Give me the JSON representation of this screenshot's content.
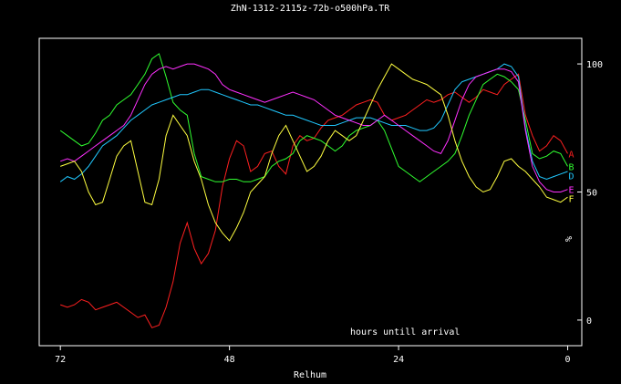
{
  "chart_data": {
    "type": "line",
    "title": "ZhN-1312-2115z-72b-o500hPa.TR",
    "xlabel": "Relhum",
    "ylabel": "%",
    "annotation": "hours untill arrival",
    "x_reversed": true,
    "xlim": [
      75,
      -2
    ],
    "ylim": [
      -10,
      110
    ],
    "x_ticks": [
      72,
      48,
      24,
      0
    ],
    "y_ticks": [
      0,
      50,
      100
    ],
    "grid": false,
    "series": [
      {
        "name": "A",
        "color": "#ff2020",
        "x": [
          72,
          71,
          70,
          69,
          68,
          67,
          66,
          65,
          64,
          63,
          62,
          61,
          60,
          59,
          58,
          57,
          56,
          55,
          54,
          53,
          52,
          51,
          50,
          49,
          48,
          47,
          46,
          45,
          44,
          43,
          42,
          41,
          40,
          39,
          38,
          37,
          36,
          35,
          34,
          33,
          32,
          31,
          30,
          29,
          28,
          27,
          26,
          25,
          24,
          23,
          22,
          21,
          20,
          19,
          18,
          17,
          16,
          15,
          14,
          13,
          12,
          11,
          10,
          9,
          8,
          7,
          6,
          5,
          4,
          3,
          2,
          1,
          0
        ],
        "values": [
          6,
          5,
          6,
          8,
          7,
          4,
          5,
          6,
          7,
          5,
          3,
          1,
          2,
          -3,
          -2,
          5,
          15,
          30,
          38,
          28,
          22,
          26,
          35,
          52,
          63,
          70,
          68,
          58,
          60,
          65,
          66,
          60,
          57,
          68,
          72,
          70,
          71,
          75,
          78,
          79,
          80,
          82,
          84,
          85,
          86,
          85,
          80,
          78,
          79,
          80,
          82,
          84,
          86,
          85,
          86,
          88,
          89,
          87,
          85,
          87,
          90,
          89,
          88,
          92,
          94,
          96,
          80,
          72,
          66,
          68,
          72,
          70,
          65
        ]
      },
      {
        "name": "B",
        "color": "#30ff30",
        "x": [
          72,
          71,
          70,
          69,
          68,
          67,
          66,
          65,
          64,
          63,
          62,
          61,
          60,
          59,
          58,
          57,
          56,
          55,
          54,
          53,
          52,
          51,
          50,
          49,
          48,
          47,
          46,
          45,
          44,
          43,
          42,
          41,
          40,
          39,
          38,
          37,
          36,
          35,
          34,
          33,
          32,
          31,
          30,
          29,
          28,
          27,
          26,
          25,
          24,
          23,
          22,
          21,
          20,
          19,
          18,
          17,
          16,
          15,
          14,
          13,
          12,
          11,
          10,
          9,
          8,
          7,
          6,
          5,
          4,
          3,
          2,
          1,
          0
        ],
        "values": [
          74,
          72,
          70,
          68,
          69,
          73,
          78,
          80,
          84,
          86,
          88,
          92,
          96,
          102,
          104,
          95,
          85,
          82,
          80,
          65,
          56,
          55,
          54,
          54,
          55,
          55,
          54,
          54,
          55,
          56,
          60,
          62,
          63,
          65,
          70,
          72,
          71,
          70,
          68,
          66,
          68,
          72,
          74,
          75,
          76,
          78,
          74,
          67,
          60,
          58,
          56,
          54,
          56,
          58,
          60,
          62,
          65,
          72,
          80,
          86,
          92,
          94,
          96,
          95,
          93,
          90,
          78,
          65,
          63,
          64,
          66,
          65,
          60
        ]
      },
      {
        "name": "D",
        "color": "#20c8ff",
        "x": [
          72,
          71,
          70,
          69,
          68,
          67,
          66,
          65,
          64,
          63,
          62,
          61,
          60,
          59,
          58,
          57,
          56,
          55,
          54,
          53,
          52,
          51,
          50,
          49,
          48,
          47,
          46,
          45,
          44,
          43,
          42,
          41,
          40,
          39,
          38,
          37,
          36,
          35,
          34,
          33,
          32,
          31,
          30,
          29,
          28,
          27,
          26,
          25,
          24,
          23,
          22,
          21,
          20,
          19,
          18,
          17,
          16,
          15,
          14,
          13,
          12,
          11,
          10,
          9,
          8,
          7,
          6,
          5,
          4,
          3,
          2,
          1,
          0
        ],
        "values": [
          54,
          56,
          55,
          57,
          60,
          64,
          68,
          70,
          72,
          75,
          78,
          80,
          82,
          84,
          85,
          86,
          87,
          88,
          88,
          89,
          90,
          90,
          89,
          88,
          87,
          86,
          85,
          84,
          84,
          83,
          82,
          81,
          80,
          80,
          79,
          78,
          77,
          76,
          76,
          76,
          77,
          78,
          79,
          79,
          79,
          78,
          77,
          76,
          76,
          76,
          75,
          74,
          74,
          75,
          78,
          84,
          90,
          93,
          94,
          95,
          96,
          97,
          98,
          100,
          99,
          95,
          75,
          62,
          56,
          55,
          56,
          57,
          58
        ]
      },
      {
        "name": "E",
        "color": "#ff30ff",
        "x": [
          72,
          71,
          70,
          69,
          68,
          67,
          66,
          65,
          64,
          63,
          62,
          61,
          60,
          59,
          58,
          57,
          56,
          55,
          54,
          53,
          52,
          51,
          50,
          49,
          48,
          47,
          46,
          45,
          44,
          43,
          42,
          41,
          40,
          39,
          38,
          37,
          36,
          35,
          34,
          33,
          32,
          31,
          30,
          29,
          28,
          27,
          26,
          25,
          24,
          23,
          22,
          21,
          20,
          19,
          18,
          17,
          16,
          15,
          14,
          13,
          12,
          11,
          10,
          9,
          8,
          7,
          6,
          5,
          4,
          3,
          2,
          1,
          0
        ],
        "values": [
          62,
          63,
          62,
          64,
          66,
          68,
          70,
          72,
          74,
          76,
          80,
          86,
          92,
          96,
          98,
          99,
          98,
          99,
          100,
          100,
          99,
          98,
          96,
          92,
          90,
          89,
          88,
          87,
          86,
          85,
          86,
          87,
          88,
          89,
          88,
          87,
          86,
          84,
          82,
          80,
          79,
          78,
          77,
          76,
          76,
          78,
          80,
          78,
          76,
          74,
          72,
          70,
          68,
          66,
          65,
          70,
          78,
          86,
          92,
          95,
          96,
          97,
          98,
          98,
          97,
          93,
          74,
          60,
          54,
          51,
          50,
          50,
          51
        ]
      },
      {
        "name": "F",
        "color": "#ffff40",
        "x": [
          72,
          71,
          70,
          69,
          68,
          67,
          66,
          65,
          64,
          63,
          62,
          61,
          60,
          59,
          58,
          57,
          56,
          55,
          54,
          53,
          52,
          51,
          50,
          49,
          48,
          47,
          46,
          45,
          44,
          43,
          42,
          41,
          40,
          39,
          38,
          37,
          36,
          35,
          34,
          33,
          32,
          31,
          30,
          29,
          28,
          27,
          26,
          25,
          24,
          23,
          22,
          21,
          20,
          19,
          18,
          17,
          16,
          15,
          14,
          13,
          12,
          11,
          10,
          9,
          8,
          7,
          6,
          5,
          4,
          3,
          2,
          1,
          0
        ],
        "values": [
          60,
          61,
          62,
          58,
          50,
          45,
          46,
          55,
          64,
          68,
          70,
          58,
          46,
          45,
          55,
          72,
          80,
          76,
          72,
          62,
          55,
          45,
          38,
          34,
          31,
          36,
          42,
          50,
          53,
          56,
          65,
          72,
          76,
          70,
          64,
          58,
          60,
          64,
          70,
          74,
          72,
          70,
          72,
          78,
          84,
          90,
          95,
          100,
          98,
          96,
          94,
          93,
          92,
          90,
          88,
          80,
          70,
          62,
          56,
          52,
          50,
          51,
          56,
          62,
          63,
          60,
          58,
          55,
          52,
          48,
          47,
          46,
          48
        ]
      }
    ]
  }
}
